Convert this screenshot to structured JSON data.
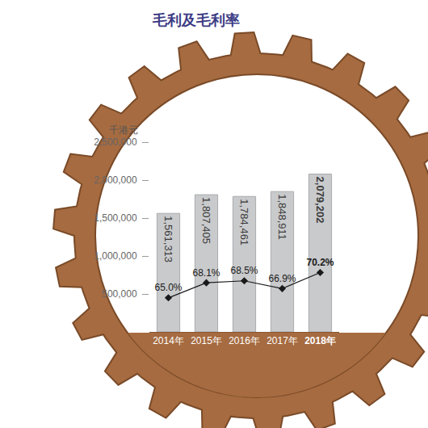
{
  "chart_data": {
    "type": "bar",
    "title": "毛利及毛利率",
    "y_label": "千港元",
    "categories": [
      "2014年",
      "2015年",
      "2016年",
      "2017年",
      "2018年"
    ],
    "series": [
      {
        "type": "bar",
        "color": "#c9cacc",
        "values": [
          1561313,
          1807405,
          1784461,
          1848911,
          2079202
        ],
        "value_labels": [
          "1,561,313",
          "1,807,405",
          "1,784,461",
          "1,848,911",
          "2,079,202"
        ]
      },
      {
        "type": "line",
        "axis": "y2",
        "color": "#1a1a1a",
        "marker": "diamond",
        "line_style": "solid",
        "values": [
          65.0,
          68.1,
          68.5,
          66.9,
          70.2
        ],
        "value_labels": [
          "65.0%",
          "68.1%",
          "68.5%",
          "66.9%",
          "70.2%"
        ]
      }
    ],
    "ylim": [
      0,
      2500000
    ],
    "yticks": [
      {
        "value": 500000,
        "label": "500,000"
      },
      {
        "value": 1000000,
        "label": "1,000,000"
      },
      {
        "value": 1500000,
        "label": "1,500,000"
      },
      {
        "value": 2000000,
        "label": "2,000,000"
      },
      {
        "value": 2500000,
        "label": "2,500,000"
      }
    ],
    "y2lim": [
      58,
      97
    ],
    "y2ticks": [],
    "data_labels": true,
    "grid": false
  }
}
